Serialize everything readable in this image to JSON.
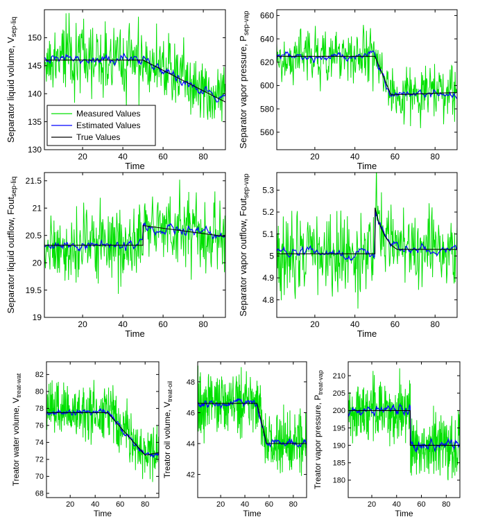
{
  "figure": {
    "legend": {
      "entries": [
        {
          "label": "Measured Values",
          "color": "#00e000"
        },
        {
          "label": "Estimated  Values",
          "color": "#0000ff"
        },
        {
          "label": "True Values",
          "color": "#000000"
        }
      ]
    }
  },
  "colors": {
    "measured": "#00e000",
    "estimated": "#0000ff",
    "true": "#000000"
  },
  "chart_data": [
    {
      "type": "line",
      "ylabel": "Separator liquid volume, V",
      "ylabel_sub": "sep-liq",
      "xlabel": "Time",
      "xlim": [
        1,
        91
      ],
      "ylim": [
        130,
        155
      ],
      "xticks": [
        20,
        40,
        60,
        80
      ],
      "yticks": [
        130,
        135,
        140,
        145,
        150
      ],
      "legend": "lower-left",
      "true_values": {
        "x": [
          1,
          50,
          91
        ],
        "y": [
          146,
          146,
          138.5
        ]
      },
      "noise_measured": 3.2,
      "noise_estimated": 1.0,
      "series": [
        {
          "name": "Measured Values"
        },
        {
          "name": "Estimated  Values"
        },
        {
          "name": "True Values"
        }
      ]
    },
    {
      "type": "line",
      "ylabel": "Separator vapor pressure, P",
      "ylabel_sub": "sep-vap",
      "xlabel": "Time",
      "xlim": [
        1,
        91
      ],
      "ylim": [
        545,
        665
      ],
      "xticks": [
        20,
        40,
        60,
        80
      ],
      "yticks": [
        560,
        580,
        600,
        620,
        640,
        660
      ],
      "true_values": {
        "x": [
          1,
          50,
          58,
          91
        ],
        "y": [
          625,
          625,
          592,
          594
        ]
      },
      "noise_measured": 12,
      "noise_estimated": 4,
      "series": [
        {
          "name": "Measured Values"
        },
        {
          "name": "Estimated  Values"
        },
        {
          "name": "True Values"
        }
      ]
    },
    {
      "type": "line",
      "ylabel": "Separator liquid outflow, Fout",
      "ylabel_sub": "sep-liq",
      "xlabel": "Time",
      "xlim": [
        1,
        91
      ],
      "ylim": [
        19,
        21.65
      ],
      "xticks": [
        20,
        40,
        60,
        80
      ],
      "yticks": [
        19,
        19.5,
        20,
        20.5,
        21,
        21.5
      ],
      "true_values": {
        "x": [
          1,
          50,
          50,
          91
        ],
        "y": [
          20.32,
          20.32,
          20.68,
          20.48
        ]
      },
      "noise_measured": 0.35,
      "noise_estimated": 0.1,
      "series": [
        {
          "name": "Measured Values"
        },
        {
          "name": "Estimated  Values"
        },
        {
          "name": "True Values"
        }
      ]
    },
    {
      "type": "line",
      "ylabel": "Separator vapor outflow, Fout",
      "ylabel_sub": "sep-vap",
      "xlabel": "Time",
      "xlim": [
        1,
        91
      ],
      "ylim": [
        4.72,
        5.38
      ],
      "xticks": [
        20,
        40,
        60,
        80
      ],
      "yticks": [
        4.8,
        4.9,
        5.0,
        5.1,
        5.2,
        5.3
      ],
      "ytick_labels": [
        "4.8",
        "4.9",
        "5",
        "5.1",
        "5.2",
        "5.3"
      ],
      "true_values": {
        "x": [
          1,
          50,
          50,
          52,
          55,
          58,
          61,
          64,
          91
        ],
        "y": [
          5.01,
          5.01,
          5.22,
          5.15,
          5.09,
          5.05,
          5.03,
          5.03,
          5.03
        ]
      },
      "noise_measured": 0.09,
      "noise_estimated": 0.025,
      "series": [
        {
          "name": "Measured Values"
        },
        {
          "name": "Estimated  Values"
        },
        {
          "name": "True Values"
        }
      ]
    },
    {
      "type": "line",
      "ylabel": "Treator water volume, V",
      "ylabel_sub": "treat-wat",
      "xlabel": "Time",
      "xlim": [
        1,
        91
      ],
      "ylim": [
        67.5,
        83.5
      ],
      "xticks": [
        20,
        40,
        60,
        80
      ],
      "yticks": [
        68,
        70,
        72,
        74,
        76,
        78,
        80,
        82
      ],
      "true_values": {
        "x": [
          1,
          50,
          80,
          91
        ],
        "y": [
          77.5,
          77.5,
          72.5,
          72.8
        ]
      },
      "noise_measured": 1.6,
      "noise_estimated": 0.4,
      "series": [
        {
          "name": "Measured Values"
        },
        {
          "name": "Estimated  Values"
        },
        {
          "name": "True Values"
        }
      ]
    },
    {
      "type": "line",
      "ylabel": "Treator oil volume, V",
      "ylabel_sub": "treat-oil",
      "xlabel": "Time",
      "xlim": [
        1,
        91
      ],
      "ylim": [
        40.5,
        49.3
      ],
      "xticks": [
        20,
        40,
        60,
        80
      ],
      "yticks": [
        42,
        44,
        46,
        48
      ],
      "true_values": {
        "x": [
          1,
          50,
          58,
          91
        ],
        "y": [
          46.6,
          46.6,
          44.0,
          44.0
        ]
      },
      "noise_measured": 1.0,
      "noise_estimated": 0.25,
      "series": [
        {
          "name": "Measured Values"
        },
        {
          "name": "Estimated  Values"
        },
        {
          "name": "True Values"
        }
      ]
    },
    {
      "type": "line",
      "ylabel": "Treator vapor pressure, P",
      "ylabel_sub": "treat-vap",
      "xlabel": "Time",
      "xlim": [
        1,
        91
      ],
      "ylim": [
        175,
        214
      ],
      "xticks": [
        20,
        40,
        60,
        80
      ],
      "yticks": [
        180,
        185,
        190,
        195,
        200,
        205,
        210
      ],
      "true_values": {
        "x": [
          1,
          51,
          51,
          91
        ],
        "y": [
          200,
          200,
          190,
          190
        ]
      },
      "noise_measured": 4.5,
      "noise_estimated": 1.6,
      "series": [
        {
          "name": "Measured Values"
        },
        {
          "name": "Estimated  Values"
        },
        {
          "name": "True Values"
        }
      ]
    }
  ]
}
